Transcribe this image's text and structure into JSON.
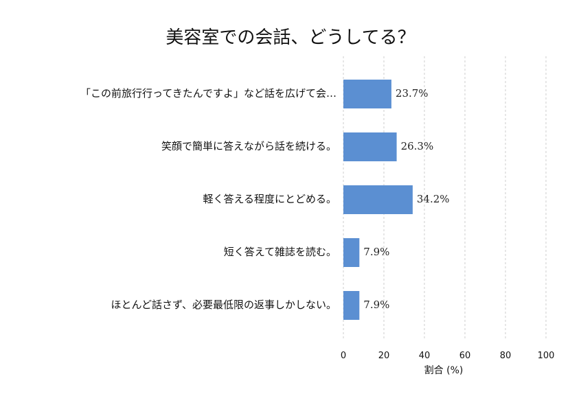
{
  "chart_data": {
    "type": "bar",
    "orientation": "horizontal",
    "title": "美容室での会話、どうしてる？",
    "categories": [
      "「この前旅行行ってきたんですよ」など話を広げて会…",
      "笑顔で簡単に答えながら話を続ける。",
      "軽く答える程度にとどめる。",
      "短く答えて雑誌を読む。",
      "ほとんど話さず、必要最低限の返事しかしない。"
    ],
    "values": [
      23.7,
      26.3,
      34.2,
      7.9,
      7.9
    ],
    "data_labels": [
      "23.7%",
      "26.3%",
      "34.2%",
      "7.9%",
      "7.9%"
    ],
    "xlabel": "割合 (%)",
    "ylabel": "",
    "xlim": [
      0,
      100
    ],
    "xticks": [
      0,
      20,
      40,
      60,
      80,
      100
    ],
    "grid": "vertical-dashed",
    "bar_color": "#5b8fd2",
    "grid_color": "#cccccc"
  }
}
